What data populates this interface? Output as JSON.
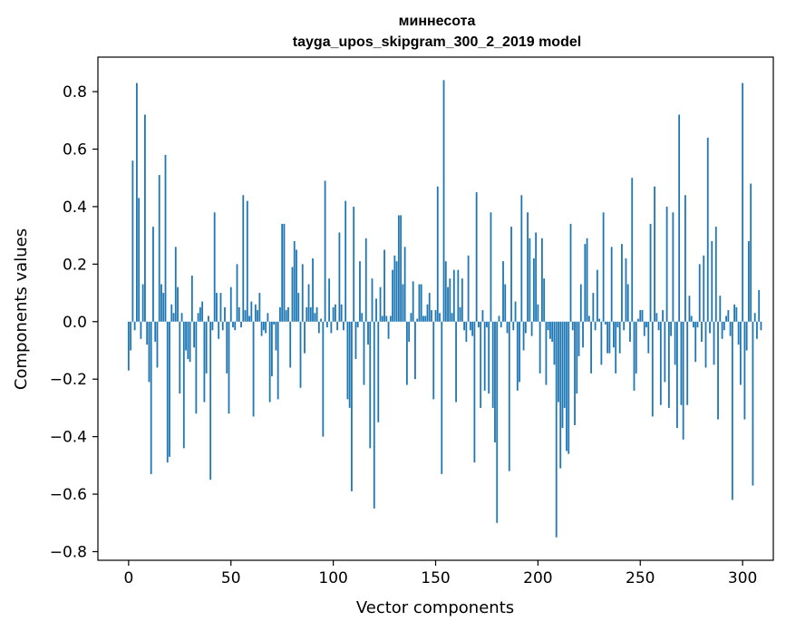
{
  "chart_data": {
    "type": "bar",
    "title": "миннесота",
    "subtitle": "tayga_upos_skipgram_300_2_2019 model",
    "xlabel": "Vector components",
    "ylabel": "Components values",
    "xlim": [
      -15,
      315
    ],
    "ylim": [
      -0.83,
      0.92
    ],
    "xticks": [
      0,
      50,
      100,
      150,
      200,
      250,
      300
    ],
    "yticks": [
      -0.8,
      -0.6,
      -0.4,
      -0.2,
      0.0,
      0.2,
      0.4,
      0.6,
      0.8
    ],
    "xtick_labels": [
      "0",
      "50",
      "100",
      "150",
      "200",
      "250",
      "300"
    ],
    "ytick_labels": [
      "−0.8",
      "−0.6",
      "−0.4",
      "−0.2",
      "0.0",
      "0.2",
      "0.4",
      "0.6",
      "0.8"
    ],
    "bar_color": "#1f77b4",
    "series": [
      {
        "name": "миннесота",
        "values": [
          -0.17,
          -0.1,
          0.56,
          -0.03,
          0.83,
          0.43,
          -0.06,
          0.13,
          0.72,
          -0.08,
          -0.21,
          -0.53,
          0.33,
          -0.07,
          -0.16,
          0.51,
          0.13,
          0.1,
          0.58,
          -0.49,
          -0.47,
          0.06,
          0.03,
          0.26,
          0.12,
          -0.25,
          0.03,
          -0.44,
          -0.1,
          -0.13,
          -0.14,
          0.16,
          -0.09,
          -0.32,
          0.03,
          0.05,
          0.07,
          -0.28,
          -0.18,
          0.02,
          -0.55,
          -0.03,
          0.38,
          0.1,
          -0.06,
          0.1,
          -0.03,
          0.05,
          -0.18,
          -0.32,
          0.12,
          -0.02,
          -0.03,
          0.2,
          0.05,
          -0.02,
          0.44,
          0.04,
          0.42,
          0.02,
          0.07,
          -0.33,
          0.06,
          0.04,
          0.1,
          -0.05,
          -0.03,
          -0.04,
          0.03,
          -0.28,
          -0.19,
          -0.01,
          -0.1,
          -0.27,
          0.05,
          0.34,
          0.34,
          0.04,
          0.05,
          -0.16,
          0.19,
          0.28,
          0.25,
          0.1,
          -0.23,
          0.2,
          -0.11,
          0.05,
          0.13,
          0.05,
          0.22,
          0.03,
          0.05,
          -0.04,
          0.01,
          -0.4,
          0.49,
          -0.02,
          0.15,
          -0.04,
          0.05,
          0.06,
          -0.03,
          0.31,
          0.06,
          -0.03,
          0.42,
          -0.27,
          -0.3,
          -0.59,
          0.4,
          -0.13,
          -0.02,
          0.21,
          0.03,
          -0.22,
          0.29,
          -0.08,
          -0.44,
          0.15,
          -0.65,
          0.08,
          -0.35,
          0.12,
          0.02,
          0.25,
          0.02,
          -0.06,
          0.02,
          0.18,
          0.23,
          0.21,
          0.37,
          0.37,
          0.13,
          0.26,
          -0.22,
          -0.07,
          0.03,
          0.14,
          -0.2,
          0.01,
          0.13,
          0.13,
          0.02,
          0.02,
          0.06,
          0.1,
          0.04,
          -0.27,
          0.04,
          0.47,
          0.03,
          -0.53,
          0.84,
          0.21,
          0.12,
          0.15,
          0.03,
          0.18,
          -0.28,
          0.18,
          0.05,
          0.15,
          -0.03,
          -0.07,
          0.23,
          -0.03,
          -0.05,
          -0.49,
          0.45,
          -0.02,
          -0.3,
          0.04,
          -0.24,
          -0.02,
          -0.25,
          0.38,
          -0.3,
          -0.42,
          -0.7,
          0.02,
          -0.02,
          0.21,
          0.13,
          -0.04,
          -0.52,
          0.33,
          -0.03,
          0.07,
          -0.24,
          -0.21,
          0.44,
          -0.1,
          -0.04,
          0.38,
          0.29,
          -0.05,
          0.22,
          0.31,
          0.06,
          -0.18,
          0.29,
          0.15,
          -0.22,
          -0.03,
          -0.06,
          -0.07,
          -0.15,
          -0.75,
          -0.28,
          -0.51,
          -0.37,
          -0.3,
          -0.45,
          -0.46,
          0.34,
          -0.03,
          -0.36,
          -0.25,
          -0.12,
          0.13,
          -0.09,
          0.27,
          0.29,
          0.02,
          -0.18,
          0.1,
          -0.03,
          0.18,
          0.01,
          -0.15,
          0.38,
          -0.01,
          -0.11,
          -0.11,
          0.26,
          -0.09,
          -0.18,
          -0.02,
          -0.11,
          0.27,
          -0.03,
          0.22,
          0.13,
          -0.07,
          0.5,
          -0.24,
          -0.18,
          0.01,
          0.04,
          0.04,
          -0.05,
          -0.02,
          -0.11,
          0.34,
          -0.33,
          0.47,
          0.03,
          -0.03,
          -0.29,
          0.04,
          -0.21,
          0.4,
          -0.3,
          -0.05,
          0.38,
          -0.15,
          -0.37,
          0.72,
          -0.29,
          -0.41,
          0.44,
          -0.29,
          0.09,
          0.02,
          -0.02,
          -0.14,
          -0.02,
          0.2,
          -0.07,
          0.23,
          -0.16,
          0.64,
          -0.04,
          0.28,
          -0.15,
          0.33,
          -0.34,
          0.09,
          -0.06,
          -0.03,
          0.02,
          0.04,
          -0.05,
          -0.62,
          0.06,
          0.05,
          -0.08,
          -0.22,
          0.83,
          -0.34,
          -0.1,
          0.28,
          0.48,
          -0.57,
          0.03,
          -0.06,
          0.11,
          -0.03
        ]
      }
    ]
  }
}
